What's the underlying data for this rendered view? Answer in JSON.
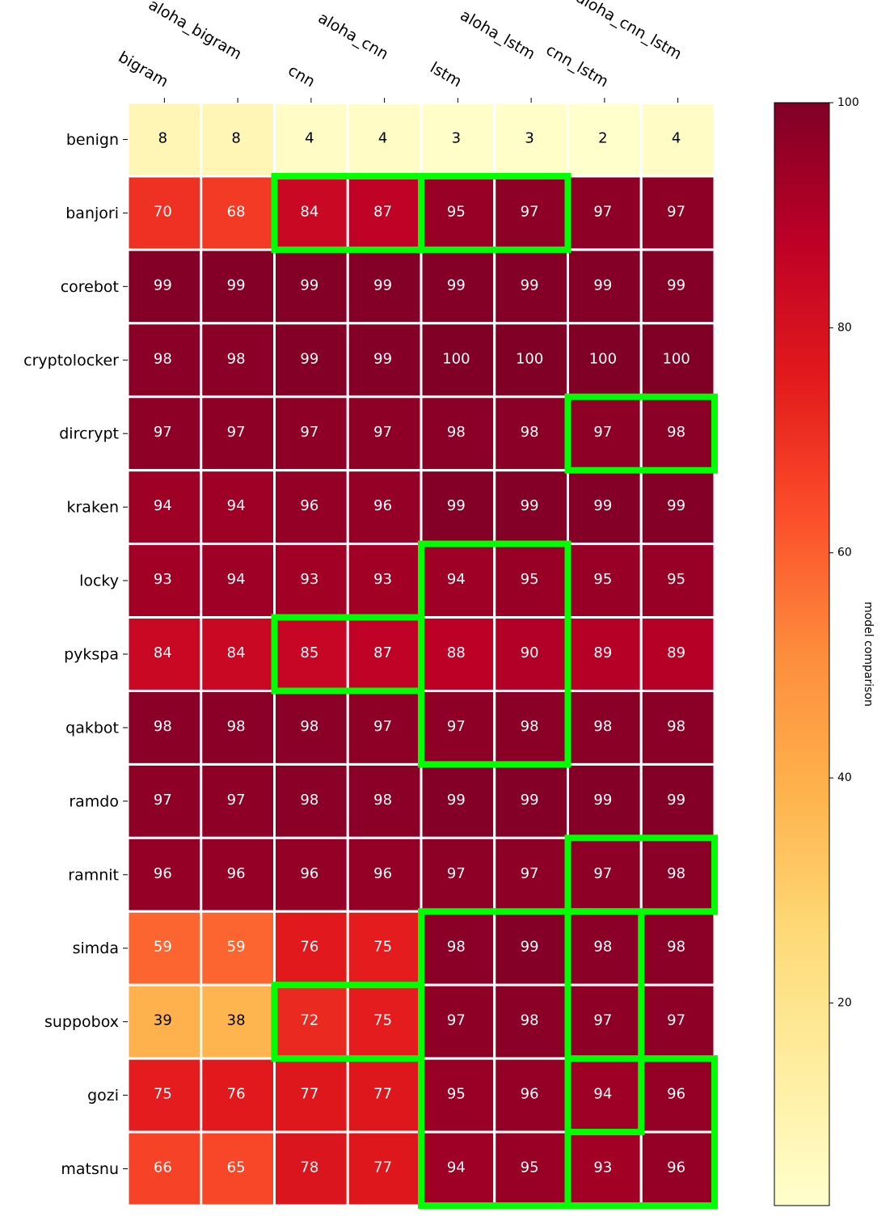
{
  "chart_data": {
    "type": "heatmap",
    "columns": [
      "bigram",
      "aloha_bigram",
      "cnn",
      "aloha_cnn",
      "lstm",
      "aloha_lstm",
      "cnn_lstm",
      "aloha_cnn_lstm"
    ],
    "rows": [
      "benign",
      "banjori",
      "corebot",
      "cryptolocker",
      "dircrypt",
      "kraken",
      "locky",
      "pykspa",
      "qakbot",
      "ramdo",
      "ramnit",
      "simda",
      "suppobox",
      "gozi",
      "matsnu"
    ],
    "values": [
      [
        8,
        8,
        4,
        4,
        3,
        3,
        2,
        4
      ],
      [
        70,
        68,
        84,
        87,
        95,
        97,
        97,
        97
      ],
      [
        99,
        99,
        99,
        99,
        99,
        99,
        99,
        99
      ],
      [
        98,
        98,
        99,
        99,
        100,
        100,
        100,
        100
      ],
      [
        97,
        97,
        97,
        97,
        98,
        98,
        97,
        98
      ],
      [
        94,
        94,
        96,
        96,
        99,
        99,
        99,
        99
      ],
      [
        93,
        94,
        93,
        93,
        94,
        95,
        95,
        95
      ],
      [
        84,
        84,
        85,
        87,
        88,
        90,
        89,
        89
      ],
      [
        98,
        98,
        98,
        97,
        97,
        98,
        98,
        98
      ],
      [
        97,
        97,
        98,
        98,
        99,
        99,
        99,
        99
      ],
      [
        96,
        96,
        96,
        96,
        97,
        97,
        97,
        98
      ],
      [
        59,
        59,
        76,
        75,
        98,
        99,
        98,
        98
      ],
      [
        39,
        38,
        72,
        75,
        97,
        98,
        97,
        97
      ],
      [
        75,
        76,
        77,
        77,
        95,
        96,
        94,
        96
      ],
      [
        66,
        65,
        78,
        77,
        94,
        95,
        93,
        96
      ]
    ],
    "highlights": [
      {
        "rows": [
          1,
          1
        ],
        "cols": [
          2,
          3
        ]
      },
      {
        "rows": [
          1,
          1
        ],
        "cols": [
          4,
          5
        ]
      },
      {
        "rows": [
          4,
          4
        ],
        "cols": [
          6,
          7
        ]
      },
      {
        "rows": [
          6,
          8
        ],
        "cols": [
          4,
          5
        ]
      },
      {
        "rows": [
          7,
          7
        ],
        "cols": [
          2,
          3
        ]
      },
      {
        "rows": [
          10,
          10
        ],
        "cols": [
          6,
          7
        ]
      },
      {
        "rows": [
          11,
          14
        ],
        "cols": [
          4,
          5
        ]
      },
      {
        "rows": [
          11,
          13
        ],
        "cols": [
          6,
          6
        ]
      },
      {
        "rows": [
          12,
          12
        ],
        "cols": [
          2,
          3
        ]
      },
      {
        "rows": [
          13,
          14
        ],
        "cols": [
          6,
          7
        ]
      }
    ],
    "colorbar": {
      "label": "model comparison",
      "range": [
        2,
        100
      ],
      "ticks": [
        20,
        40,
        60,
        80,
        100
      ],
      "colormap": "YlOrRd"
    },
    "highlight_color": "#00ff00"
  }
}
